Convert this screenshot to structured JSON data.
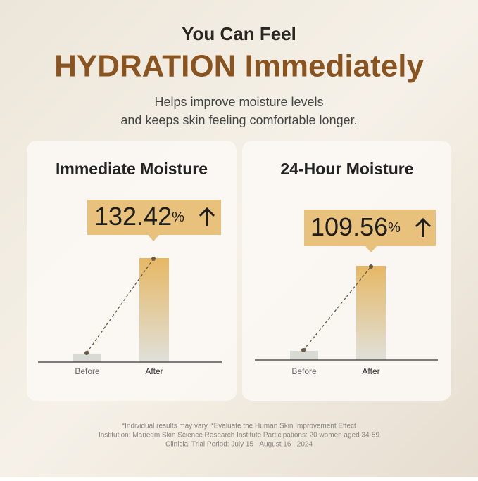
{
  "header": {
    "title_line1": "You Can Feel",
    "title_line2": "HYDRATION Immediately",
    "subtitle_line1": "Helps improve moisture levels",
    "subtitle_line2": "and keeps skin feeling comfortable longer."
  },
  "cards": [
    {
      "title": "Immediate Moisture",
      "increase": "132.42",
      "unit": "%",
      "before_label": "Before",
      "after_label": "After"
    },
    {
      "title": "24-Hour Moisture",
      "increase": "109.56",
      "unit": "%",
      "before_label": "Before",
      "after_label": "After"
    }
  ],
  "footer": {
    "line1": "*Individual results may vary. *Evaluate the Human Skin Improvement Effect",
    "line2": "Institution: Mariedm Skin Science Research Institute Participations: 20 women aged 34-59",
    "line3": "Clinicial Trial Period: July 15 - August 16 , 2024"
  }
}
